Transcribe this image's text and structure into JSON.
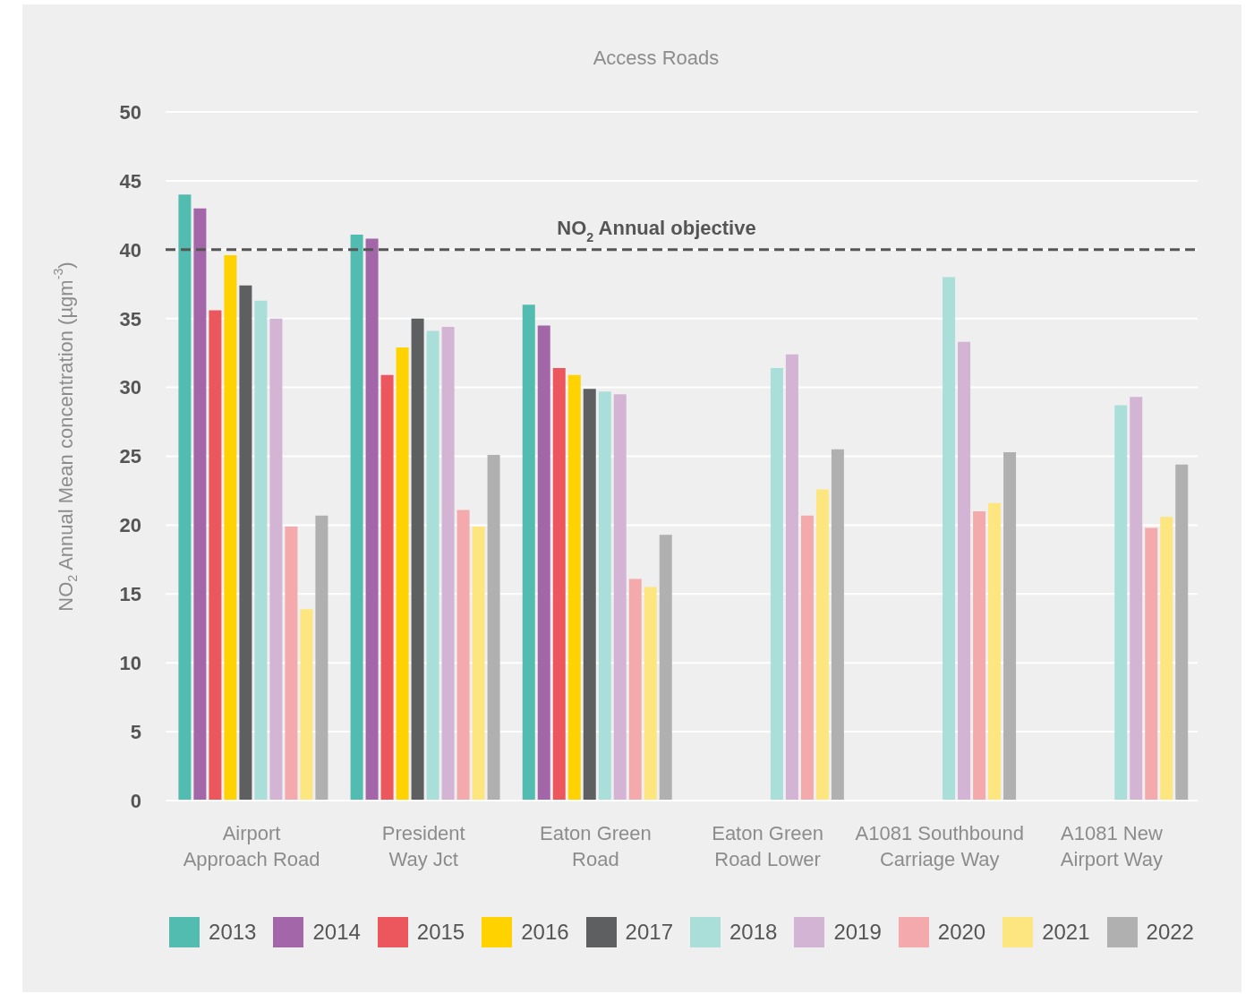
{
  "chart_data": {
    "type": "bar",
    "title": "Access Roads",
    "ylabel": "NO$_{2}$ Annual Mean concentration (µgm$^{-3}$)",
    "categories": [
      "Airport Approach Road",
      "President Way Jct",
      "Eaton Green Road",
      "Eaton Green Road Lower",
      "A1081 Southbound Carriage Way",
      "A1081 New Airport Way"
    ],
    "series": [
      {
        "name": "2013",
        "color": "#52bcb0",
        "values": [
          44.0,
          41.1,
          36.0,
          null,
          null,
          null
        ]
      },
      {
        "name": "2014",
        "color": "#a266a9",
        "values": [
          43.0,
          40.8,
          34.5,
          null,
          null,
          null
        ]
      },
      {
        "name": "2015",
        "color": "#eb575d",
        "values": [
          35.6,
          30.9,
          31.4,
          null,
          null,
          null
        ]
      },
      {
        "name": "2016",
        "color": "#ffd200",
        "values": [
          39.6,
          32.9,
          30.9,
          null,
          null,
          null
        ]
      },
      {
        "name": "2017",
        "color": "#5e5f61",
        "values": [
          37.4,
          35.0,
          29.9,
          null,
          null,
          null
        ]
      },
      {
        "name": "2018",
        "color": "#aaded8",
        "values": [
          36.3,
          34.1,
          29.7,
          31.4,
          38.0,
          28.7
        ]
      },
      {
        "name": "2019",
        "color": "#d3b4d4",
        "values": [
          35.0,
          34.4,
          29.5,
          32.4,
          33.3,
          29.3
        ]
      },
      {
        "name": "2020",
        "color": "#f4aaad",
        "values": [
          19.9,
          21.1,
          16.1,
          20.7,
          21.0,
          19.8
        ]
      },
      {
        "name": "2021",
        "color": "#fde580",
        "values": [
          13.9,
          19.9,
          15.5,
          22.6,
          21.6,
          20.6
        ]
      },
      {
        "name": "2022",
        "color": "#b0b0b0",
        "values": [
          20.7,
          25.1,
          19.3,
          25.5,
          25.3,
          24.4
        ]
      }
    ],
    "ylim": [
      0,
      50
    ],
    "yticks": [
      0,
      5,
      10,
      15,
      20,
      25,
      30,
      35,
      40,
      45,
      50
    ],
    "grid": "y",
    "legend": "bottom",
    "ref_lines": [
      {
        "axis": "y",
        "value": 40,
        "label": "NO$_{2}$ Annual objective",
        "color": "#555555",
        "line_style": "dashed"
      }
    ]
  }
}
